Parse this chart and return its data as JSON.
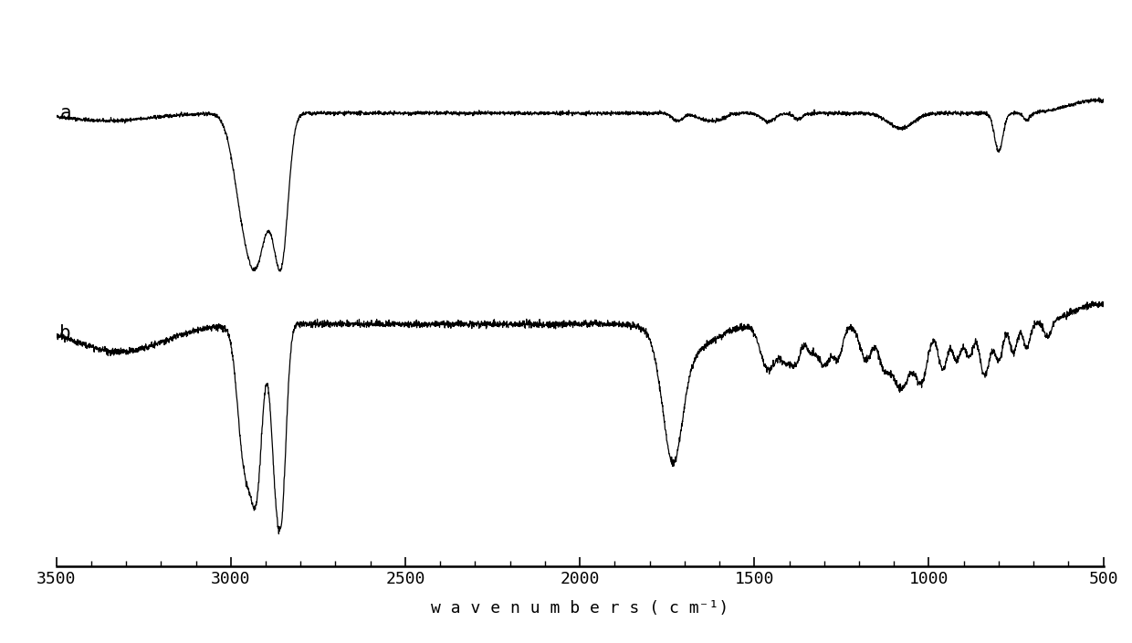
{
  "xmin": 500,
  "xmax": 3500,
  "label_a": "a",
  "label_b": "b",
  "xticks": [
    3500,
    3000,
    2500,
    2000,
    1500,
    1000,
    500
  ],
  "background_color": "#ffffff",
  "line_color": "#000000",
  "xlabel": "w a v e n u m b e r s ( c m⁻¹)"
}
